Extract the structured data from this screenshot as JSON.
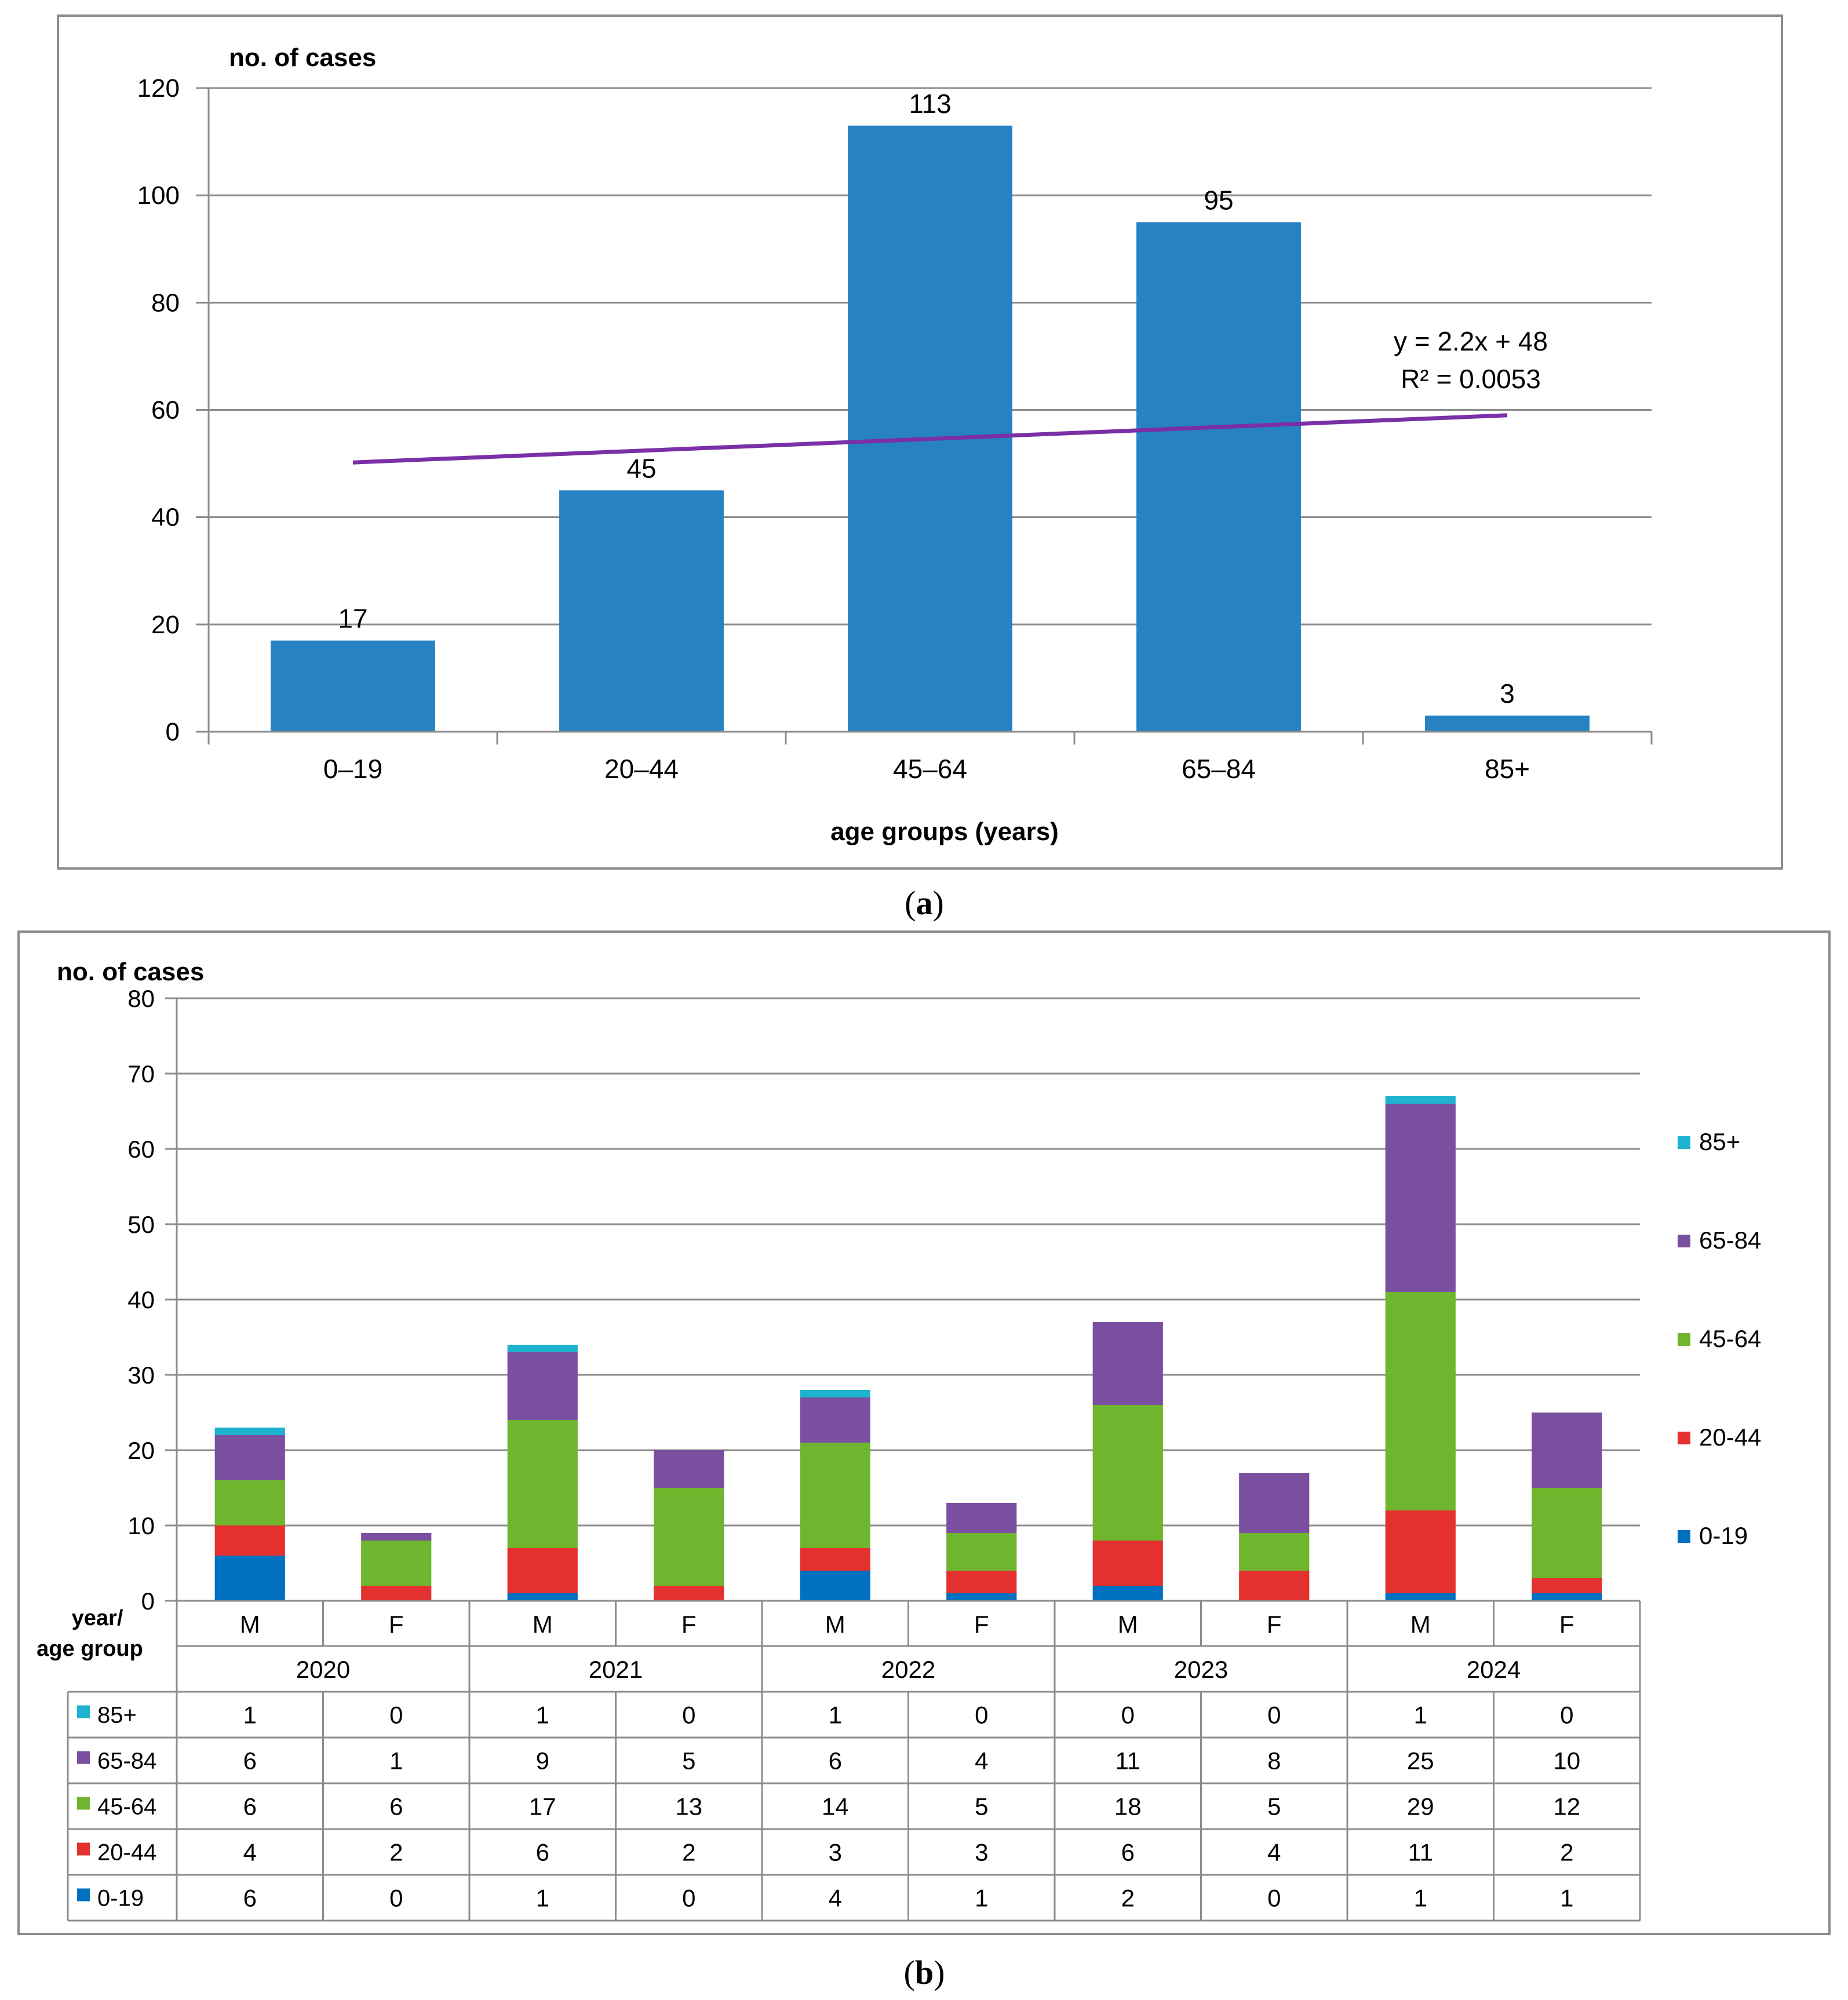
{
  "chart_data": [
    {
      "type": "bar",
      "panel_label": "(a)",
      "panel_letter": "a",
      "title": "",
      "ylabel": "no. of cases",
      "xlabel": "age groups  (years)",
      "categories": [
        "0–19",
        "20–44",
        "45–64",
        "65–84",
        "85+"
      ],
      "values": [
        17,
        45,
        113,
        95,
        3
      ],
      "ylim": [
        0,
        120
      ],
      "yticks": [
        0,
        20,
        40,
        60,
        80,
        100,
        120
      ],
      "grid": true,
      "colors": {
        "bar": "#2682c2",
        "trendline": "#7b2fa6"
      },
      "trendline": {
        "equation": "y = 2.2x + 48",
        "r_squared": "R² = 0.0053",
        "start_value": 50.2,
        "end_value": 59
      }
    },
    {
      "type": "bar",
      "stacked": true,
      "panel_label": "(b)",
      "panel_letter": "b",
      "title": "",
      "ylabel": "no. of cases",
      "ylim": [
        0,
        80
      ],
      "yticks": [
        0,
        10,
        20,
        30,
        40,
        50,
        60,
        70,
        80
      ],
      "grid": true,
      "legend_position": "right",
      "table_corner_label": [
        "year/",
        "age group"
      ],
      "years": [
        "2020",
        "2021",
        "2022",
        "2023",
        "2024"
      ],
      "categories": [
        "M",
        "F",
        "M",
        "F",
        "M",
        "F",
        "M",
        "F",
        "M",
        "F"
      ],
      "series": [
        {
          "name": "0-19",
          "color": "#0070c0",
          "values": [
            6,
            0,
            1,
            0,
            4,
            1,
            2,
            0,
            1,
            1
          ]
        },
        {
          "name": "20-44",
          "color": "#e53030",
          "values": [
            4,
            2,
            6,
            2,
            3,
            3,
            6,
            4,
            11,
            2
          ]
        },
        {
          "name": "45-64",
          "color": "#6fb52e",
          "values": [
            6,
            6,
            17,
            13,
            14,
            5,
            18,
            5,
            29,
            12
          ]
        },
        {
          "name": "65-84",
          "color": "#7a4fa0",
          "values": [
            6,
            1,
            9,
            5,
            6,
            4,
            11,
            8,
            25,
            10
          ]
        },
        {
          "name": "85+",
          "color": "#1fb3cf",
          "values": [
            1,
            0,
            1,
            0,
            1,
            0,
            0,
            0,
            1,
            0
          ]
        }
      ]
    }
  ]
}
